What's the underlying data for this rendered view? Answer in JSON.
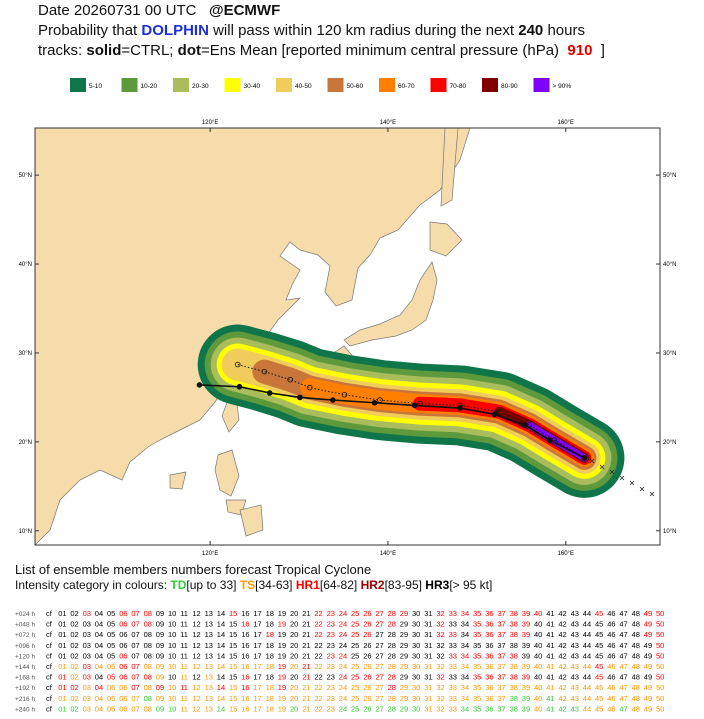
{
  "header": {
    "date": "Date 20260731 00 UTC",
    "source": "@ECMWF",
    "prob_a": "Probability that",
    "storm": "DOLPHIN",
    "prob_b": "will pass within 120 km radius during the next",
    "hours": 240,
    "prob_c": "hours",
    "tracks_a": "tracks:",
    "solid": "solid",
    "tracks_b": "=CTRL;",
    "dot": "dot",
    "tracks_c": "=Ens Mean [reported minimum central pressure (hPa)",
    "pressure": 910,
    "tracks_d": "]"
  },
  "legend": [
    {
      "label": "5-10",
      "color": "#10754a"
    },
    {
      "label": "10-20",
      "color": "#5e9a3c"
    },
    {
      "label": "20-30",
      "color": "#a9bd5c"
    },
    {
      "label": "30-40",
      "color": "#ffff00"
    },
    {
      "label": "40-50",
      "color": "#f0cc5a"
    },
    {
      "label": "50-60",
      "color": "#c8763a"
    },
    {
      "label": "60-70",
      "color": "#ff7f00"
    },
    {
      "label": "70-80",
      "color": "#ff0000"
    },
    {
      "label": "80-90",
      "color": "#7f0000"
    },
    {
      "label": "> 90%",
      "color": "#8000ff"
    }
  ],
  "map": {
    "lonlim": [
      100.3,
      170.6
    ],
    "latlim": [
      8.4,
      55.3
    ],
    "xticks": [
      {
        "value": 120,
        "label": "120°E"
      },
      {
        "value": 140,
        "label": "140°E"
      },
      {
        "value": 160,
        "label": "160°E"
      }
    ],
    "yticks": [
      {
        "value": 10,
        "label": "10°N"
      },
      {
        "value": 20,
        "label": "20°N"
      },
      {
        "value": 30,
        "label": "30°N"
      },
      {
        "value": 40,
        "label": "40°N"
      },
      {
        "value": 50,
        "label": "50°N"
      }
    ],
    "ctrl_track": {
      "lon": [
        118.8,
        123.3,
        126.7,
        130.1,
        133.8,
        138.5,
        143.0,
        148.1,
        152.0,
        155.4,
        158.2,
        162.1
      ],
      "lat": [
        26.4,
        26.2,
        25.5,
        25.0,
        24.7,
        24.4,
        24.1,
        23.8,
        23.1,
        21.9,
        20.2,
        18.2
      ]
    },
    "mean_track": {
      "lon": [
        123.1,
        126.1,
        129.0,
        131.2,
        135.1,
        139.1,
        143.6,
        148.1,
        152.5,
        155.9,
        158.7,
        162.1
      ],
      "lat": [
        28.7,
        27.9,
        27.0,
        26.1,
        25.3,
        24.7,
        24.3,
        24.1,
        23.4,
        21.9,
        20.2,
        18.2
      ]
    }
  },
  "table": {
    "title": "List of ensemble members numbers forecast Tropical Cyclone",
    "intro": "Intensity category in colours:",
    "categories": [
      {
        "name": "TD",
        "range": "[up to 33]",
        "color": "#33cc33"
      },
      {
        "name": "TS",
        "range": "[34-63]",
        "color": "#ff9900"
      },
      {
        "name": "HR1",
        "range": "[64-82]",
        "color": "#ff0000"
      },
      {
        "name": "HR2",
        "range": "[83-95]",
        "color": "#990000"
      },
      {
        "name": "HR3",
        "range": "[> 95 kt]",
        "color": "#000000"
      }
    ],
    "members": [
      "cf",
      "01",
      "02",
      "03",
      "04",
      "05",
      "06",
      "07",
      "08",
      "09",
      "10",
      "11",
      "12",
      "13",
      "14",
      "15",
      "16",
      "17",
      "18",
      "19",
      "20",
      "21",
      "22",
      "23",
      "24",
      "25",
      "26",
      "27",
      "28",
      "29",
      "30",
      "31",
      "32",
      "33",
      "34",
      "35",
      "36",
      "37",
      "38",
      "39",
      "40",
      "41",
      "42",
      "43",
      "44",
      "45",
      "46",
      "47",
      "48",
      "49",
      "50"
    ],
    "rows": [
      {
        "label": "+024 h",
        "categories": [
          4,
          4,
          4,
          2,
          4,
          4,
          2,
          2,
          2,
          4,
          4,
          4,
          4,
          4,
          4,
          2,
          4,
          4,
          4,
          4,
          4,
          4,
          2,
          2,
          2,
          2,
          2,
          2,
          2,
          2,
          4,
          4,
          2,
          2,
          2,
          2,
          2,
          2,
          2,
          2,
          2,
          4,
          4,
          4,
          4,
          2,
          4,
          4,
          4,
          2,
          2
        ]
      },
      {
        "label": "+048 h",
        "categories": [
          4,
          4,
          4,
          4,
          4,
          4,
          2,
          2,
          2,
          4,
          4,
          4,
          4,
          4,
          4,
          4,
          2,
          4,
          4,
          2,
          4,
          4,
          2,
          2,
          2,
          2,
          2,
          2,
          2,
          4,
          4,
          4,
          2,
          4,
          4,
          2,
          2,
          2,
          2,
          2,
          4,
          4,
          4,
          4,
          4,
          4,
          4,
          4,
          4,
          2,
          2
        ]
      },
      {
        "label": "+072 h",
        "categories": [
          4,
          4,
          4,
          4,
          4,
          4,
          4,
          4,
          4,
          4,
          4,
          4,
          4,
          4,
          4,
          4,
          4,
          4,
          2,
          4,
          4,
          4,
          2,
          2,
          2,
          2,
          2,
          4,
          4,
          4,
          4,
          4,
          2,
          2,
          4,
          2,
          2,
          2,
          2,
          2,
          4,
          4,
          4,
          4,
          4,
          4,
          4,
          4,
          4,
          2,
          2
        ]
      },
      {
        "label": "+096 h",
        "categories": [
          4,
          4,
          4,
          4,
          4,
          4,
          4,
          4,
          4,
          4,
          4,
          4,
          4,
          4,
          4,
          4,
          4,
          4,
          4,
          4,
          4,
          4,
          4,
          4,
          4,
          4,
          4,
          4,
          4,
          4,
          4,
          4,
          4,
          4,
          4,
          4,
          4,
          4,
          4,
          4,
          4,
          4,
          4,
          4,
          4,
          4,
          4,
          4,
          4,
          4,
          2
        ]
      },
      {
        "label": "+120 h",
        "categories": [
          4,
          4,
          4,
          4,
          4,
          4,
          2,
          4,
          4,
          4,
          4,
          4,
          4,
          4,
          4,
          4,
          4,
          4,
          4,
          4,
          4,
          4,
          4,
          2,
          2,
          4,
          4,
          4,
          4,
          4,
          4,
          4,
          4,
          2,
          2,
          2,
          2,
          2,
          2,
          4,
          4,
          4,
          4,
          4,
          4,
          4,
          4,
          4,
          4,
          4,
          2
        ]
      },
      {
        "label": "+144 h",
        "categories": [
          4,
          1,
          1,
          2,
          1,
          1,
          2,
          2,
          1,
          1,
          1,
          1,
          1,
          1,
          1,
          1,
          1,
          1,
          1,
          2,
          1,
          2,
          1,
          1,
          1,
          1,
          1,
          1,
          1,
          1,
          1,
          1,
          1,
          1,
          1,
          1,
          1,
          1,
          1,
          1,
          1,
          1,
          1,
          1,
          1,
          2,
          1,
          1,
          1,
          1,
          1
        ]
      },
      {
        "label": "+168 h",
        "categories": [
          4,
          2,
          1,
          2,
          4,
          2,
          2,
          2,
          2,
          1,
          4,
          1,
          4,
          1,
          4,
          4,
          2,
          4,
          4,
          2,
          4,
          2,
          4,
          4,
          2,
          2,
          2,
          2,
          2,
          4,
          4,
          4,
          2,
          4,
          4,
          2,
          2,
          2,
          2,
          2,
          4,
          4,
          4,
          4,
          4,
          2,
          4,
          4,
          4,
          4,
          2
        ]
      },
      {
        "label": "+192 h",
        "categories": [
          4,
          2,
          2,
          1,
          2,
          1,
          1,
          2,
          1,
          2,
          1,
          2,
          1,
          1,
          2,
          1,
          2,
          1,
          1,
          2,
          1,
          1,
          1,
          1,
          1,
          1,
          1,
          1,
          2,
          1,
          1,
          1,
          1,
          1,
          1,
          1,
          1,
          1,
          1,
          1,
          1,
          1,
          1,
          1,
          1,
          1,
          1,
          1,
          1,
          1,
          1
        ]
      },
      {
        "label": "+216 h",
        "categories": [
          4,
          1,
          1,
          1,
          1,
          1,
          1,
          1,
          0,
          1,
          1,
          1,
          1,
          1,
          1,
          1,
          1,
          1,
          1,
          1,
          1,
          1,
          1,
          1,
          1,
          1,
          1,
          1,
          1,
          1,
          1,
          1,
          1,
          1,
          1,
          1,
          1,
          1,
          0,
          0,
          1,
          0,
          1,
          1,
          1,
          1,
          1,
          1,
          1,
          1,
          1
        ]
      },
      {
        "label": "+240 h",
        "categories": [
          4,
          0,
          0,
          1,
          1,
          1,
          1,
          1,
          1,
          0,
          0,
          1,
          1,
          1,
          0,
          1,
          1,
          1,
          1,
          1,
          0,
          1,
          1,
          1,
          0,
          0,
          0,
          0,
          0,
          0,
          0,
          1,
          1,
          1,
          0,
          0,
          0,
          0,
          0,
          0,
          1,
          0,
          0,
          0,
          1,
          1,
          1,
          0,
          1,
          1,
          1
        ]
      }
    ]
  }
}
